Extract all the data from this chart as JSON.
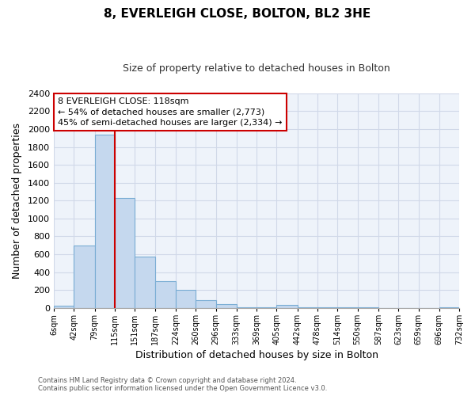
{
  "title": "8, EVERLEIGH CLOSE, BOLTON, BL2 3HE",
  "subtitle": "Size of property relative to detached houses in Bolton",
  "xlabel": "Distribution of detached houses by size in Bolton",
  "ylabel": "Number of detached properties",
  "bin_edges": [
    6,
    42,
    79,
    115,
    151,
    187,
    224,
    260,
    296,
    333,
    369,
    405,
    442,
    478,
    514,
    550,
    587,
    623,
    659,
    696,
    732
  ],
  "bin_labels": [
    "6sqm",
    "42sqm",
    "79sqm",
    "115sqm",
    "151sqm",
    "187sqm",
    "224sqm",
    "260sqm",
    "296sqm",
    "333sqm",
    "369sqm",
    "405sqm",
    "442sqm",
    "478sqm",
    "514sqm",
    "550sqm",
    "587sqm",
    "623sqm",
    "659sqm",
    "696sqm",
    "732sqm"
  ],
  "counts": [
    20,
    700,
    1940,
    1230,
    575,
    300,
    200,
    85,
    45,
    10,
    10,
    35,
    10,
    10,
    5,
    5,
    0,
    0,
    0,
    5
  ],
  "bar_color": "#c5d8ee",
  "bar_edge_color": "#7aadd4",
  "property_line_x": 115,
  "ylim": [
    0,
    2400
  ],
  "yticks": [
    0,
    200,
    400,
    600,
    800,
    1000,
    1200,
    1400,
    1600,
    1800,
    2000,
    2200,
    2400
  ],
  "annotation_title": "8 EVERLEIGH CLOSE: 118sqm",
  "annotation_line1": "← 54% of detached houses are smaller (2,773)",
  "annotation_line2": "45% of semi-detached houses are larger (2,334) →",
  "footer_line1": "Contains HM Land Registry data © Crown copyright and database right 2024.",
  "footer_line2": "Contains public sector information licensed under the Open Government Licence v3.0.",
  "red_line_color": "#cc0000",
  "annotation_box_color": "#ffffff",
  "annotation_box_edge": "#cc0000",
  "background_color": "#ffffff",
  "grid_color": "#d0d8e8"
}
